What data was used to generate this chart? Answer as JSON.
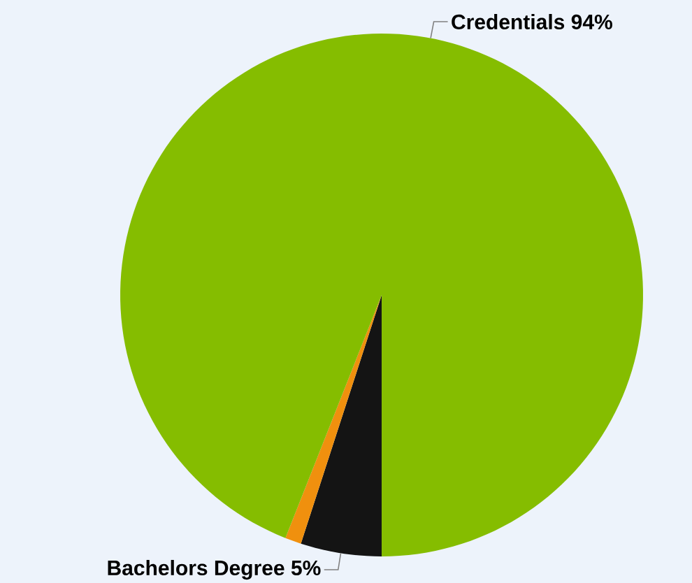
{
  "chart_data": {
    "type": "pie",
    "categories": [
      "Bachelors Degree",
      null,
      "Credentials"
    ],
    "values": [
      5,
      1,
      94
    ],
    "value_labels": [
      "5%",
      null,
      "94%"
    ],
    "colors": [
      "#141414",
      "#f0900e",
      "#85bd00"
    ]
  }
}
